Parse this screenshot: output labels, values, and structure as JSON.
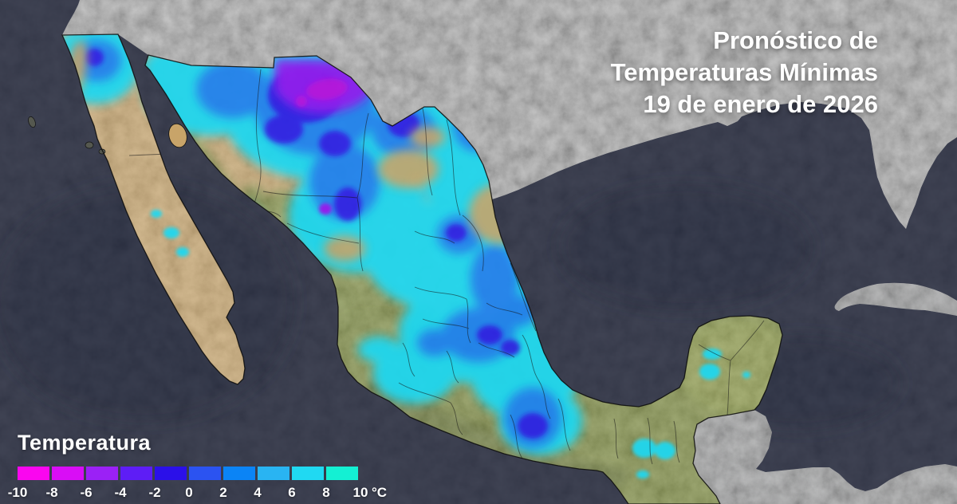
{
  "header": {
    "line1": "Pronóstico de",
    "line2": "Temperaturas Mínimas",
    "line3": "19 de enero de 2026"
  },
  "legend": {
    "title": "Temperatura",
    "unit": "°C",
    "tick_labels": [
      "-10",
      "-8",
      "-6",
      "-4",
      "-2",
      "0",
      "2",
      "4",
      "6",
      "8",
      "10"
    ],
    "segment_colors": [
      "#fa06ef",
      "#d90df6",
      "#9b21f6",
      "#5e1df6",
      "#2b10e9",
      "#2b53f1",
      "#0b84f6",
      "#29b4f2",
      "#20d9f2",
      "#14f0d3"
    ]
  },
  "map": {
    "colors": {
      "ocean": "#2c3042",
      "us_land": "#9d9d9d",
      "neighbor_land": "#8f9091",
      "terrain_green": "#7d8b3f",
      "terrain_desert": "#c8a469",
      "overlay_cyan": "#1dd8f1",
      "overlay_blue": "#1f7bf3",
      "overlay_deep_blue": "#2a16e9",
      "overlay_purple": "#8d16f4",
      "overlay_magenta": "#b60edf"
    }
  }
}
